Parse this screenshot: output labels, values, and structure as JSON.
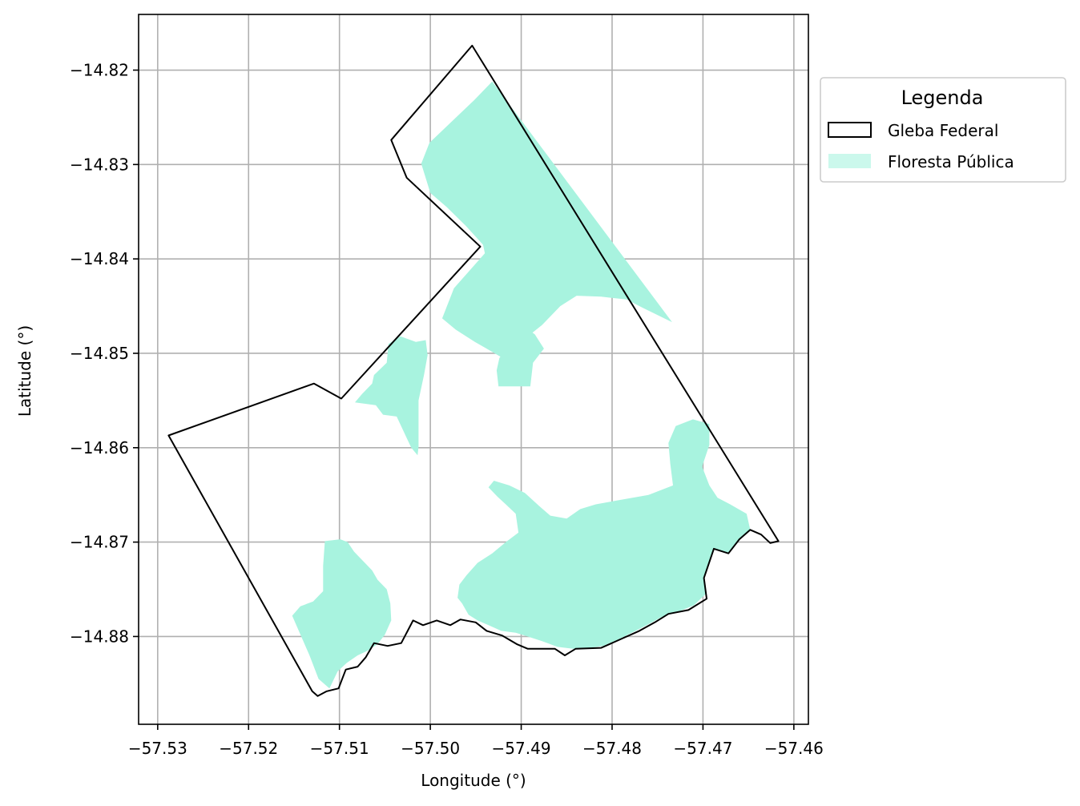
{
  "map": {
    "xlabel": "Longitude (°)",
    "ylabel": "Latitude (°)",
    "xlim": [
      -57.5321,
      -57.4584
    ],
    "ylim": [
      -14.8893,
      -14.8141
    ],
    "grid": true,
    "x_ticks": [
      -57.53,
      -57.52,
      -57.51,
      -57.5,
      -57.49,
      -57.48,
      -57.47,
      -57.46
    ],
    "x_tick_labels": [
      "−57.53",
      "−57.52",
      "−57.51",
      "−57.50",
      "−57.49",
      "−57.48",
      "−57.47",
      "−57.46"
    ],
    "y_ticks": [
      -14.82,
      -14.83,
      -14.84,
      -14.85,
      -14.86,
      -14.87,
      -14.88
    ],
    "y_tick_labels": [
      "−14.82",
      "−14.83",
      "−14.84",
      "−14.85",
      "−14.86",
      "−14.87",
      "−14.88"
    ],
    "colors": {
      "gleba_edge": "#000000",
      "floresta_fill": "#a8f3df",
      "grid": "#b0b0b0"
    },
    "legend": {
      "title": "Legenda",
      "placement": "outside upper-right",
      "entries": [
        {
          "label": "Gleba Federal"
        },
        {
          "label": "Floresta Pública"
        }
      ]
    },
    "layers": {
      "gleba_federal": [
        [
          -57.4954,
          -14.8174
        ],
        [
          -57.4617,
          -14.8699
        ],
        [
          -57.4626,
          -14.8701
        ],
        [
          -57.4636,
          -14.8692
        ],
        [
          -57.4648,
          -14.8687
        ],
        [
          -57.466,
          -14.8697
        ],
        [
          -57.4672,
          -14.8712
        ],
        [
          -57.4688,
          -14.8707
        ],
        [
          -57.4699,
          -14.8738
        ],
        [
          -57.4696,
          -14.876
        ],
        [
          -57.4716,
          -14.8772
        ],
        [
          -57.4738,
          -14.8776
        ],
        [
          -57.4753,
          -14.8785
        ],
        [
          -57.477,
          -14.8794
        ],
        [
          -57.4791,
          -14.8803
        ],
        [
          -57.4812,
          -14.8812
        ],
        [
          -57.484,
          -14.8813
        ],
        [
          -57.4852,
          -14.882
        ],
        [
          -57.4863,
          -14.8813
        ],
        [
          -57.4893,
          -14.8813
        ],
        [
          -57.4905,
          -14.8808
        ],
        [
          -57.4921,
          -14.8799
        ],
        [
          -57.4938,
          -14.8794
        ],
        [
          -57.495,
          -14.8785
        ],
        [
          -57.4967,
          -14.8782
        ],
        [
          -57.4978,
          -14.8788
        ],
        [
          -57.4993,
          -14.8783
        ],
        [
          -57.5008,
          -14.8788
        ],
        [
          -57.5019,
          -14.8783
        ],
        [
          -57.5032,
          -14.8807
        ],
        [
          -57.5047,
          -14.881
        ],
        [
          -57.5062,
          -14.8807
        ],
        [
          -57.5071,
          -14.8822
        ],
        [
          -57.508,
          -14.8832
        ],
        [
          -57.5093,
          -14.8835
        ],
        [
          -57.5101,
          -14.8855
        ],
        [
          -57.5114,
          -14.8858
        ],
        [
          -57.5124,
          -14.8863
        ],
        [
          -57.513,
          -14.8858
        ],
        [
          -57.5288,
          -14.8587
        ],
        [
          -57.5128,
          -14.8532
        ],
        [
          -57.5098,
          -14.8548
        ],
        [
          -57.4945,
          -14.8387
        ],
        [
          -57.5026,
          -14.8314
        ],
        [
          -57.5043,
          -14.8274
        ]
      ],
      "floresta_publica": [
        [
          [
            -57.4932,
            -14.8212
          ],
          [
            -57.4952,
            -14.8232
          ],
          [
            -57.5001,
            -14.8277
          ],
          [
            -57.501,
            -14.8299
          ],
          [
            -57.5,
            -14.833
          ],
          [
            -57.4982,
            -14.8345
          ],
          [
            -57.4961,
            -14.8365
          ],
          [
            -57.4942,
            -14.8385
          ],
          [
            -57.494,
            -14.8394
          ],
          [
            -57.4974,
            -14.8431
          ],
          [
            -57.4987,
            -14.8463
          ],
          [
            -57.4972,
            -14.8475
          ],
          [
            -57.4951,
            -14.8488
          ],
          [
            -57.494,
            -14.8494
          ],
          [
            -57.4922,
            -14.8504
          ],
          [
            -57.4903,
            -14.849
          ],
          [
            -57.4877,
            -14.847
          ],
          [
            -57.4857,
            -14.845
          ],
          [
            -57.4839,
            -14.8439
          ],
          [
            -57.4812,
            -14.844
          ],
          [
            -57.4784,
            -14.8443
          ],
          [
            -57.4766,
            -14.8452
          ],
          [
            -57.4734,
            -14.8467
          ]
        ],
        [
          [
            -57.5062,
            -14.8523
          ],
          [
            -57.5064,
            -14.8532
          ],
          [
            -57.5075,
            -14.8543
          ],
          [
            -57.5083,
            -14.8552
          ],
          [
            -57.506,
            -14.8555
          ],
          [
            -57.5052,
            -14.8565
          ],
          [
            -57.5037,
            -14.8567
          ],
          [
            -57.5021,
            -14.86
          ],
          [
            -57.5014,
            -14.8608
          ],
          [
            -57.5013,
            -14.8599
          ],
          [
            -57.5013,
            -14.855
          ],
          [
            -57.5007,
            -14.8523
          ],
          [
            -57.5003,
            -14.8502
          ],
          [
            -57.5005,
            -14.8486
          ],
          [
            -57.5016,
            -14.8488
          ],
          [
            -57.5033,
            -14.8482
          ],
          [
            -57.5046,
            -14.849
          ],
          [
            -57.5048,
            -14.851
          ]
        ],
        [
          [
            -57.4925,
            -14.8535
          ],
          [
            -57.489,
            -14.8535
          ],
          [
            -57.4887,
            -14.851
          ],
          [
            -57.4875,
            -14.8495
          ],
          [
            -57.4885,
            -14.848
          ],
          [
            -57.4896,
            -14.8472
          ],
          [
            -57.4911,
            -14.8474
          ],
          [
            -57.4912,
            -14.849
          ],
          [
            -57.4924,
            -14.8505
          ],
          [
            -57.4927,
            -14.8518
          ]
        ],
        [
          [
            -57.5111,
            -14.8855
          ],
          [
            -57.5102,
            -14.8837
          ],
          [
            -57.5092,
            -14.8828
          ],
          [
            -57.508,
            -14.882
          ],
          [
            -57.5069,
            -14.8815
          ],
          [
            -57.5058,
            -14.8808
          ],
          [
            -57.505,
            -14.8798
          ],
          [
            -57.5043,
            -14.8783
          ],
          [
            -57.5044,
            -14.8765
          ],
          [
            -57.5048,
            -14.875
          ],
          [
            -57.5058,
            -14.874
          ],
          [
            -57.5064,
            -14.873
          ],
          [
            -57.5071,
            -14.8723
          ],
          [
            -57.5078,
            -14.8716
          ],
          [
            -57.5084,
            -14.871
          ],
          [
            -57.5091,
            -14.87
          ],
          [
            -57.5099,
            -14.8697
          ],
          [
            -57.5116,
            -14.8699
          ],
          [
            -57.5118,
            -14.8725
          ],
          [
            -57.5118,
            -14.8752
          ],
          [
            -57.5129,
            -14.8763
          ],
          [
            -57.5143,
            -14.8768
          ],
          [
            -57.5152,
            -14.8778
          ],
          [
            -57.5133,
            -14.882
          ],
          [
            -57.5123,
            -14.8845
          ]
        ],
        [
          [
            -57.497,
            -14.8759
          ],
          [
            -57.4965,
            -14.8765
          ],
          [
            -57.4958,
            -14.8777
          ],
          [
            -57.4948,
            -14.8783
          ],
          [
            -57.4936,
            -14.8788
          ],
          [
            -57.4922,
            -14.8794
          ],
          [
            -57.4906,
            -14.8796
          ],
          [
            -57.4893,
            -14.88
          ],
          [
            -57.4877,
            -14.8805
          ],
          [
            -57.486,
            -14.8811
          ],
          [
            -57.4843,
            -14.8813
          ],
          [
            -57.4825,
            -14.8812
          ],
          [
            -57.481,
            -14.881
          ],
          [
            -57.4793,
            -14.8803
          ],
          [
            -57.4776,
            -14.8795
          ],
          [
            -57.476,
            -14.8787
          ],
          [
            -57.4745,
            -14.8779
          ],
          [
            -57.4728,
            -14.8774
          ],
          [
            -57.471,
            -14.8767
          ],
          [
            -57.4697,
            -14.8755
          ],
          [
            -57.4699,
            -14.8738
          ],
          [
            -57.4688,
            -14.8707
          ],
          [
            -57.4672,
            -14.8712
          ],
          [
            -57.466,
            -14.8697
          ],
          [
            -57.4648,
            -14.8687
          ],
          [
            -57.4652,
            -14.867
          ],
          [
            -57.467,
            -14.866
          ],
          [
            -57.4684,
            -14.8653
          ],
          [
            -57.4693,
            -14.864
          ],
          [
            -57.4701,
            -14.862
          ],
          [
            -57.4693,
            -14.8597
          ],
          [
            -57.4693,
            -14.8575
          ],
          [
            -57.4711,
            -14.857
          ],
          [
            -57.473,
            -14.8577
          ],
          [
            -57.4738,
            -14.8595
          ],
          [
            -57.4736,
            -14.8617
          ],
          [
            -57.4733,
            -14.864
          ],
          [
            -57.476,
            -14.865
          ],
          [
            -57.4795,
            -14.8656
          ],
          [
            -57.4818,
            -14.866
          ],
          [
            -57.4835,
            -14.8665
          ],
          [
            -57.485,
            -14.8675
          ],
          [
            -57.4868,
            -14.8672
          ],
          [
            -57.488,
            -14.8662
          ],
          [
            -57.4896,
            -14.8648
          ],
          [
            -57.4913,
            -14.864
          ],
          [
            -57.493,
            -14.8635
          ],
          [
            -57.4936,
            -14.8642
          ],
          [
            -57.4926,
            -14.8652
          ],
          [
            -57.4917,
            -14.866
          ],
          [
            -57.4906,
            -14.867
          ],
          [
            -57.4903,
            -14.869
          ],
          [
            -57.4917,
            -14.87
          ],
          [
            -57.4932,
            -14.8712
          ],
          [
            -57.4948,
            -14.8722
          ],
          [
            -57.496,
            -14.8735
          ],
          [
            -57.4968,
            -14.8745
          ]
        ]
      ]
    }
  }
}
